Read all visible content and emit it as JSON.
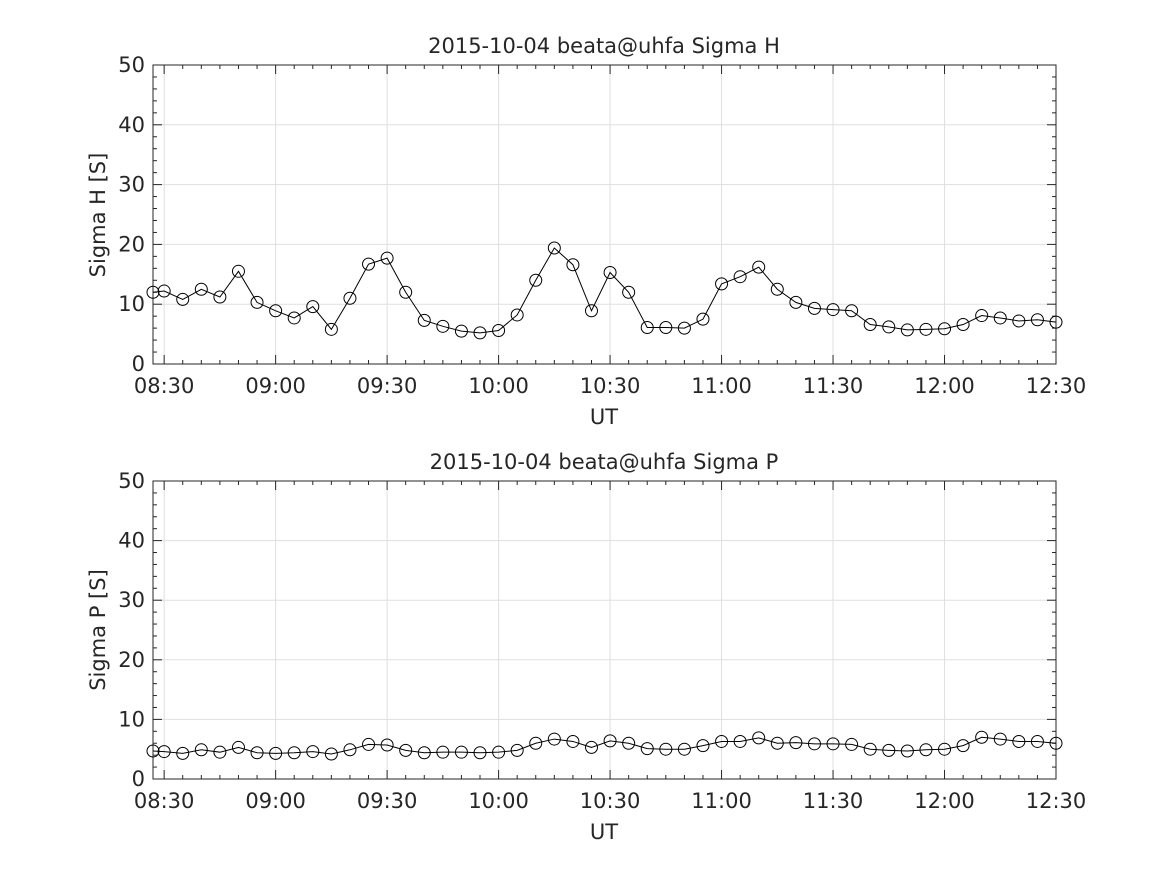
{
  "chart_data": [
    {
      "type": "line",
      "title": "2015-10-04  beata@uhfa Sigma H",
      "xlabel": "UT",
      "ylabel": "Sigma H [S]",
      "ylim": [
        0,
        50
      ],
      "yticks": [
        "0",
        "10",
        "20",
        "30",
        "40",
        "50"
      ],
      "xlim": [
        "08:27",
        "12:30"
      ],
      "xticks": [
        "08:30",
        "09:00",
        "09:30",
        "10:00",
        "10:30",
        "11:00",
        "11:30",
        "12:00",
        "12:30"
      ],
      "grid": true,
      "marker": "circle",
      "x": [
        "08:27",
        "08:30",
        "08:35",
        "08:40",
        "08:45",
        "08:50",
        "08:55",
        "09:00",
        "09:05",
        "09:10",
        "09:15",
        "09:20",
        "09:25",
        "09:30",
        "09:35",
        "09:40",
        "09:45",
        "09:50",
        "09:55",
        "10:00",
        "10:05",
        "10:10",
        "10:15",
        "10:20",
        "10:25",
        "10:30",
        "10:35",
        "10:40",
        "10:45",
        "10:50",
        "10:55",
        "11:00",
        "11:05",
        "11:10",
        "11:15",
        "11:20",
        "11:25",
        "11:30",
        "11:35",
        "11:40",
        "11:45",
        "11:50",
        "11:55",
        "12:00",
        "12:05",
        "12:10",
        "12:15",
        "12:20",
        "12:25",
        "12:30"
      ],
      "values": [
        12.0,
        12.2,
        10.8,
        12.5,
        11.2,
        15.5,
        10.3,
        8.9,
        7.7,
        9.6,
        5.8,
        11.0,
        16.7,
        17.7,
        12.0,
        7.3,
        6.3,
        5.5,
        5.2,
        5.6,
        8.2,
        14.0,
        19.4,
        16.6,
        8.9,
        15.3,
        12.0,
        6.1,
        6.1,
        6.0,
        7.5,
        13.4,
        14.6,
        16.2,
        12.5,
        10.3,
        9.3,
        9.1,
        8.9,
        6.6,
        6.2,
        5.7,
        5.8,
        5.9,
        6.6,
        8.1,
        7.7,
        7.2,
        7.4,
        7.0
      ]
    },
    {
      "type": "line",
      "title": "2015-10-04  beata@uhfa Sigma P",
      "xlabel": "UT",
      "ylabel": "Sigma P [S]",
      "ylim": [
        0,
        50
      ],
      "yticks": [
        "0",
        "10",
        "20",
        "30",
        "40",
        "50"
      ],
      "xlim": [
        "08:27",
        "12:30"
      ],
      "xticks": [
        "08:30",
        "09:00",
        "09:30",
        "10:00",
        "10:30",
        "11:00",
        "11:30",
        "12:00",
        "12:30"
      ],
      "grid": true,
      "marker": "circle",
      "x": [
        "08:27",
        "08:30",
        "08:35",
        "08:40",
        "08:45",
        "08:50",
        "08:55",
        "09:00",
        "09:05",
        "09:10",
        "09:15",
        "09:20",
        "09:25",
        "09:30",
        "09:35",
        "09:40",
        "09:45",
        "09:50",
        "09:55",
        "10:00",
        "10:05",
        "10:10",
        "10:15",
        "10:20",
        "10:25",
        "10:30",
        "10:35",
        "10:40",
        "10:45",
        "10:50",
        "10:55",
        "11:00",
        "11:05",
        "11:10",
        "11:15",
        "11:20",
        "11:25",
        "11:30",
        "11:35",
        "11:40",
        "11:45",
        "11:50",
        "11:55",
        "12:00",
        "12:05",
        "12:10",
        "12:15",
        "12:20",
        "12:25",
        "12:30"
      ],
      "values": [
        4.7,
        4.6,
        4.3,
        4.9,
        4.5,
        5.3,
        4.4,
        4.3,
        4.4,
        4.6,
        4.2,
        4.9,
        5.8,
        5.7,
        4.8,
        4.4,
        4.5,
        4.5,
        4.4,
        4.5,
        4.8,
        6.0,
        6.7,
        6.3,
        5.3,
        6.4,
        6.0,
        5.1,
        5.0,
        5.0,
        5.6,
        6.3,
        6.3,
        6.9,
        6.0,
        6.1,
        5.9,
        5.9,
        5.8,
        5.0,
        4.8,
        4.7,
        4.9,
        5.0,
        5.6,
        7.0,
        6.7,
        6.3,
        6.3,
        6.0
      ]
    }
  ]
}
